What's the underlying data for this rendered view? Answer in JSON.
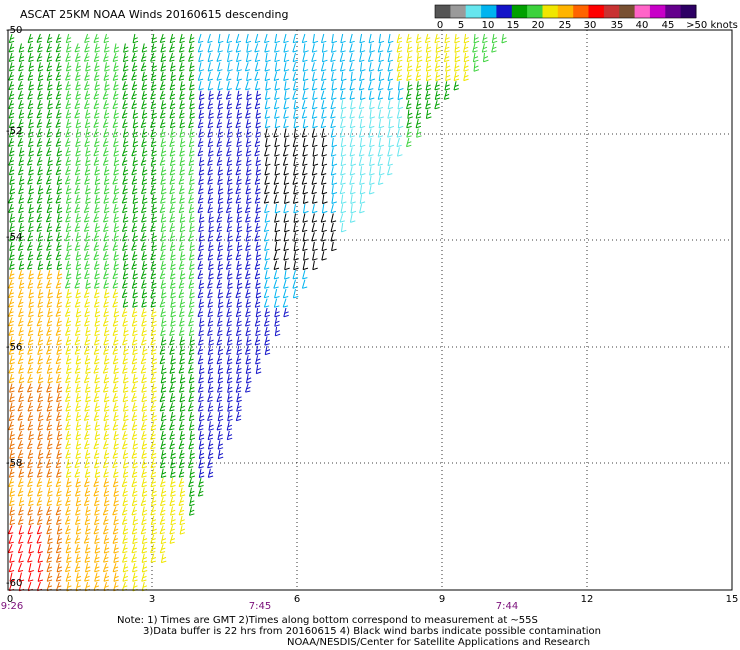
{
  "title": "ASCAT 25KM NOAA Winds 20160615 descending",
  "colorbar": {
    "unit_label": ">50 knots",
    "tick_labels": [
      "0",
      "5",
      "10",
      "15",
      "20",
      "25",
      "30",
      "35",
      "40",
      "45"
    ],
    "colors": [
      "#555555",
      "#9a9a9a",
      "#66e6ee",
      "#00b4f0",
      "#1414c8",
      "#00a000",
      "#3cd23c",
      "#f0e600",
      "#ffb400",
      "#ff6400",
      "#ff0000",
      "#c83232",
      "#785032",
      "#ff64c8",
      "#c800c8",
      "#64008c",
      "#2d0064"
    ]
  },
  "map": {
    "lat_labels": [
      "-50",
      "-52",
      "-54",
      "-56",
      "-58",
      "-60"
    ],
    "lon_labels": [
      "0",
      "3",
      "6",
      "9",
      "12",
      "15"
    ],
    "time_labels": [
      "9:26",
      "7:45",
      "7:44"
    ],
    "lon_range": [
      0,
      15
    ],
    "lat_range": [
      -60,
      -49.5
    ],
    "grid": true
  },
  "notes": [
    "Note: 1) Times are GMT 2)Times along bottom correspond to measurement at ~55S",
    "3)Data buffer is 22 hrs from 20160615 4) Black wind barbs indicate possible contamination",
    "NOAA/NESDIS/Center for Satellite Applications and Research"
  ],
  "wind_colors": {
    "light_yellow": "#f0e600",
    "orange": "#ffb400",
    "dark_orange": "#e87000",
    "green": "#00a000",
    "light_green": "#3cd23c",
    "blue": "#1414c8",
    "cyan": "#00b4f0",
    "light_cyan": "#66e6ee",
    "black": "#000000",
    "red": "#ff0000"
  }
}
